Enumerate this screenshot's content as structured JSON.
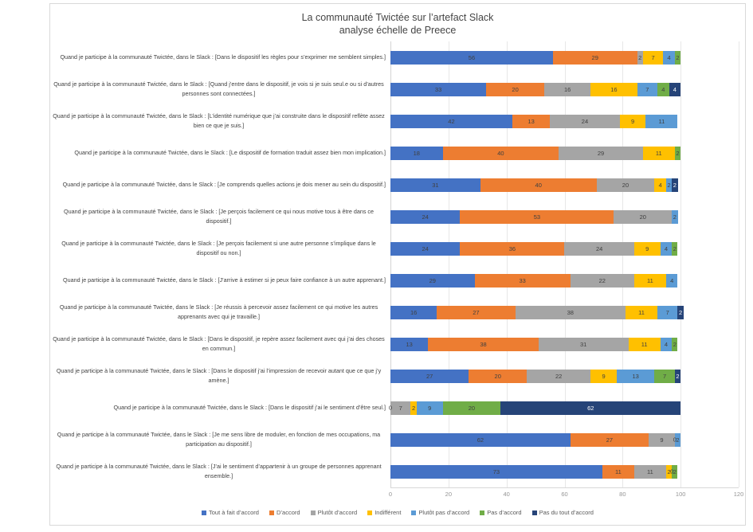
{
  "chart_data": {
    "type": "bar",
    "variant": "horizontal-stacked",
    "title_lines": [
      "La communauté Twictée sur l’artefact Slack",
      "analyse échelle de Preece"
    ],
    "xlim": [
      0,
      120
    ],
    "x_ticks": [
      0,
      20,
      40,
      60,
      80,
      100,
      120
    ],
    "grid": true,
    "legend_position": "bottom",
    "categories": [
      "Quand je participe à la communauté Twictée, dans le Slack : [Dans le dispositif les règles pour s’exprimer me semblent simples.]",
      "Quand je participe à la communauté Twictée, dans le Slack : [Quand j’entre dans le dispositif, je vois si je suis seul.e ou si d’autres personnes sont connectées.]",
      "Quand je participe à la communauté Twictée, dans le Slack : [L’identité numérique que j’ai construite dans le dispositif reflète assez bien ce que je suis.]",
      "Quand je participe à la communauté Twictée, dans le Slack : [Le dispositif de formation traduit assez bien mon implication.]",
      "Quand je participe à la communauté Twictée, dans le Slack : [Je comprends quelles actions je dois mener au sein du dispositif.]",
      "Quand je participe à la communauté Twictée, dans le Slack : [Je perçois facilement ce qui nous motive tous à être dans ce dispositif.]",
      "Quand je participe à la communauté Twictée, dans le Slack : [Je perçois facilement si une autre personne s’implique dans le dispositif ou non.]",
      "Quand je participe à la communauté Twictée, dans le Slack : [J’arrive à estimer si je peux faire confiance à un autre apprenant.]",
      "Quand je participe à la communauté Twictée, dans le Slack : [Je réussis à percevoir assez facilement ce qui motive les autres apprenants avec qui je travaille.]",
      "Quand je participe à la communauté Twictée, dans le Slack : [Dans le dispositif, je repère assez facilement avec qui j’ai des choses en commun.]",
      "Quand je participe à la communauté Twictée, dans le Slack : [Dans le dispositif j’ai l’impression de recevoir autant que ce que j’y amène.]",
      "Quand je participe à la communauté Twictée, dans le Slack : [Dans le dispositif j’ai le sentiment d’être seul.]",
      "Quand je participe à la communauté Twictée, dans le Slack : [Je me sens libre de moduler, en fonction de mes occupations, ma participation au dispositif.]",
      "Quand je participe à la communauté Twictée, dans le Slack : [J’ai le sentiment d’appartenir à un groupe de personnes apprenant ensemble.]"
    ],
    "series": [
      {
        "name": "Tout à fait d’accord",
        "color": "#4472C4",
        "values": [
          56,
          33,
          42,
          18,
          31,
          24,
          24,
          29,
          16,
          13,
          27,
          0,
          62,
          73
        ]
      },
      {
        "name": "D’accord",
        "color": "#ED7D31",
        "values": [
          29,
          20,
          13,
          40,
          40,
          53,
          36,
          33,
          27,
          38,
          20,
          0,
          27,
          11
        ]
      },
      {
        "name": "Plutôt d’accord",
        "color": "#A5A5A5",
        "values": [
          2,
          16,
          24,
          29,
          20,
          20,
          24,
          22,
          38,
          31,
          22,
          7,
          9,
          11
        ]
      },
      {
        "name": "Indifférent",
        "color": "#FFC000",
        "values": [
          7,
          16,
          9,
          11,
          4,
          0,
          9,
          11,
          11,
          11,
          9,
          2,
          0,
          2
        ]
      },
      {
        "name": "Plutôt pas d’accord",
        "color": "#5B9BD5",
        "values": [
          4,
          7,
          11,
          0,
          2,
          2,
          4,
          4,
          7,
          4,
          13,
          9,
          2,
          0
        ]
      },
      {
        "name": "Pas d’accord",
        "color": "#70AD47",
        "values": [
          2,
          4,
          0,
          2,
          0,
          0,
          2,
          0,
          0,
          2,
          7,
          20,
          0,
          2
        ]
      },
      {
        "name": "Pas du tout d’accord",
        "color": "#264478",
        "values": [
          0,
          4,
          0,
          0,
          2,
          0,
          0,
          0,
          2,
          0,
          2,
          62,
          0,
          0
        ]
      }
    ],
    "zero_labels_shown": [
      {
        "row": 11,
        "series": 0
      },
      {
        "row": 12,
        "series": 3
      },
      {
        "row": 13,
        "series": 4
      }
    ]
  }
}
